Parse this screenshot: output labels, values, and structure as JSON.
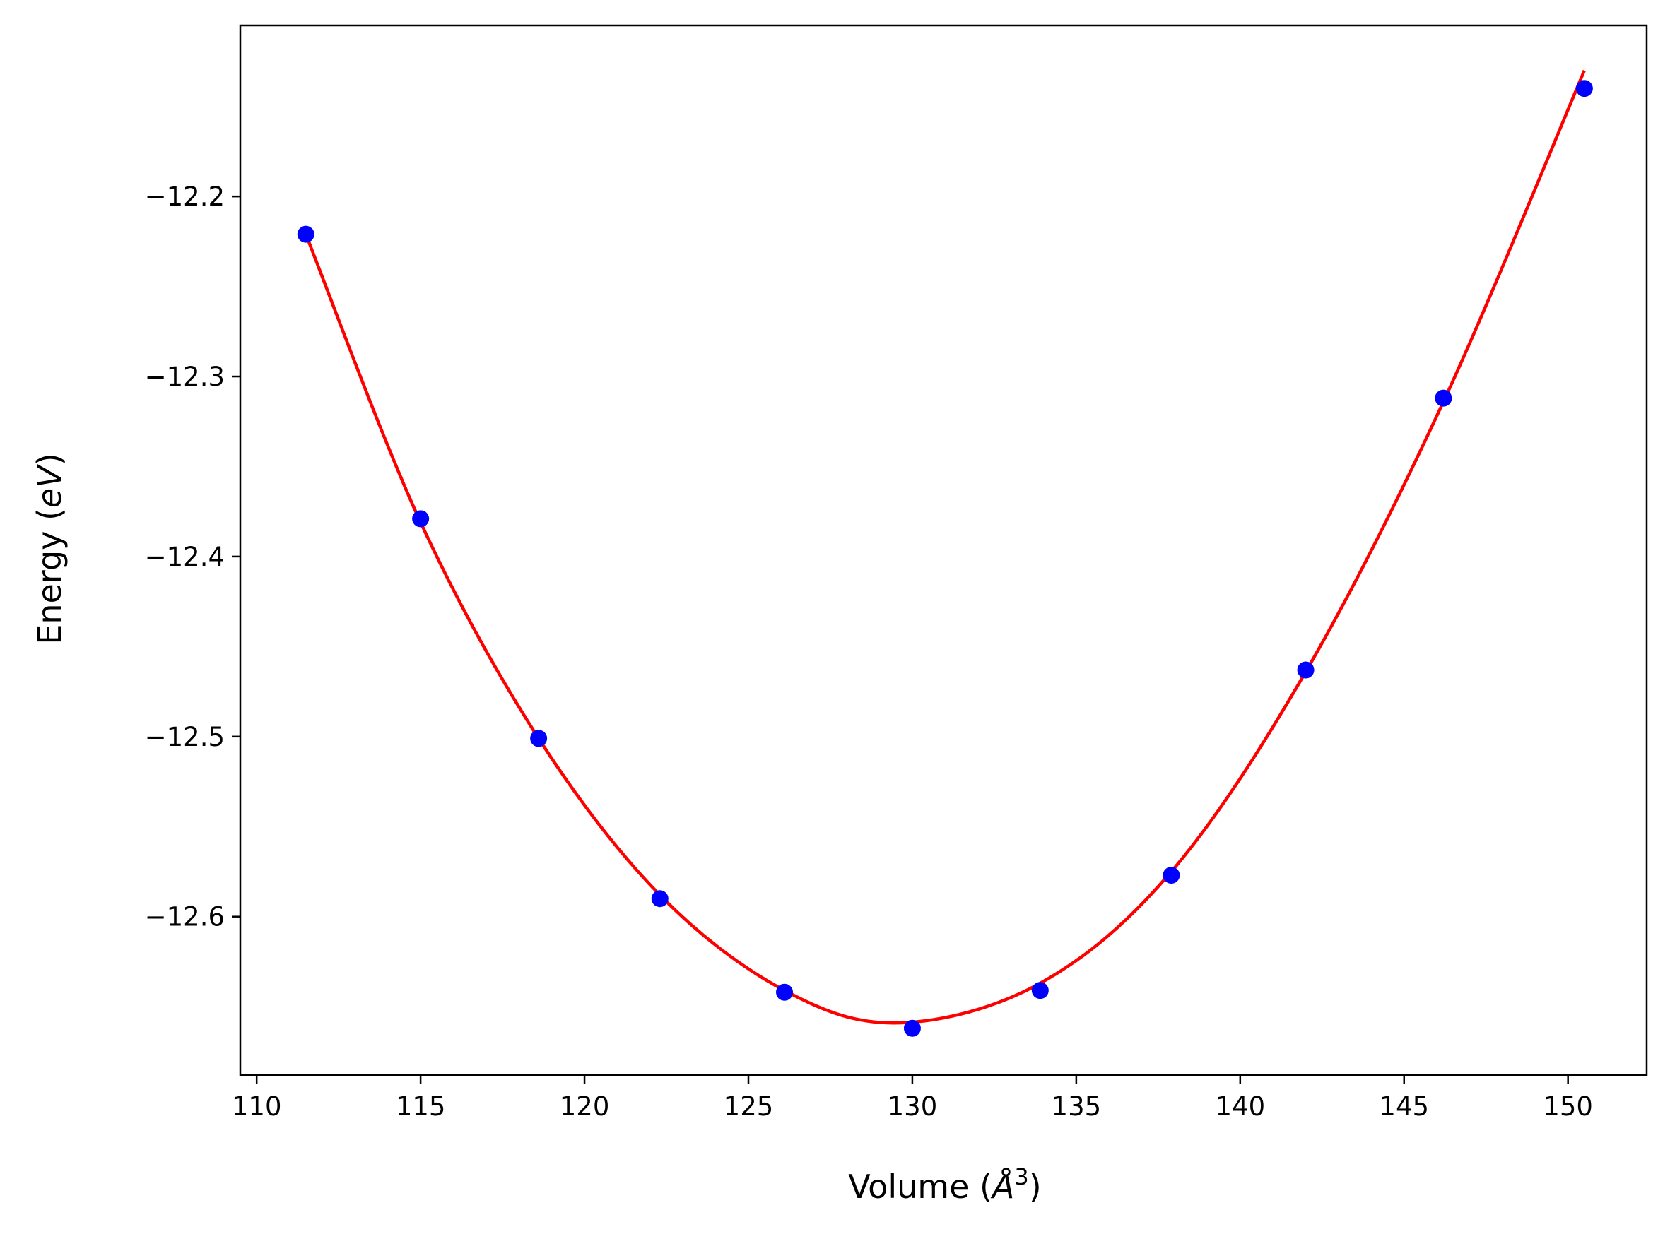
{
  "chart_data": {
    "type": "scatter",
    "title": "",
    "xlabel": "Volume (Å³)",
    "ylabel": "Energy (eV)",
    "xlabel_parts": {
      "pre": "Volume (",
      "sym": "Å",
      "sup": "3",
      "post": ")"
    },
    "ylabel_parts": {
      "pre": "Energy (",
      "sym": "eV",
      "post": ")"
    },
    "xlim": [
      109.5,
      152.4
    ],
    "ylim": [
      -12.688,
      -12.105
    ],
    "xticks": [
      110,
      115,
      120,
      125,
      130,
      135,
      140,
      145,
      150
    ],
    "yticks": [
      -12.2,
      -12.3,
      -12.4,
      -12.5,
      -12.6
    ],
    "xtick_labels": [
      "110",
      "115",
      "120",
      "125",
      "130",
      "135",
      "140",
      "145",
      "150"
    ],
    "ytick_labels": [
      "−12.2",
      "−12.3",
      "−12.4",
      "−12.5",
      "−12.6"
    ],
    "grid": false,
    "legend": null,
    "series": [
      {
        "kind": "markers",
        "color": "#0000ff",
        "x": [
          111.5,
          115.0,
          118.6,
          122.3,
          126.1,
          130.0,
          133.9,
          137.9,
          142.0,
          146.2,
          150.5
        ],
        "y": [
          -12.221,
          -12.379,
          -12.501,
          -12.59,
          -12.642,
          -12.662,
          -12.641,
          -12.577,
          -12.463,
          -12.312,
          -12.14
        ]
      },
      {
        "kind": "fit-line",
        "color": "#ff0000",
        "x": [
          111.5,
          115.0,
          118.6,
          122.3,
          126.1,
          129.6,
          133.9,
          137.9,
          142.0,
          146.2,
          150.5
        ],
        "y": [
          -12.221,
          -12.381,
          -12.501,
          -12.588,
          -12.641,
          -12.659,
          -12.637,
          -12.575,
          -12.464,
          -12.314,
          -12.13
        ]
      }
    ]
  }
}
